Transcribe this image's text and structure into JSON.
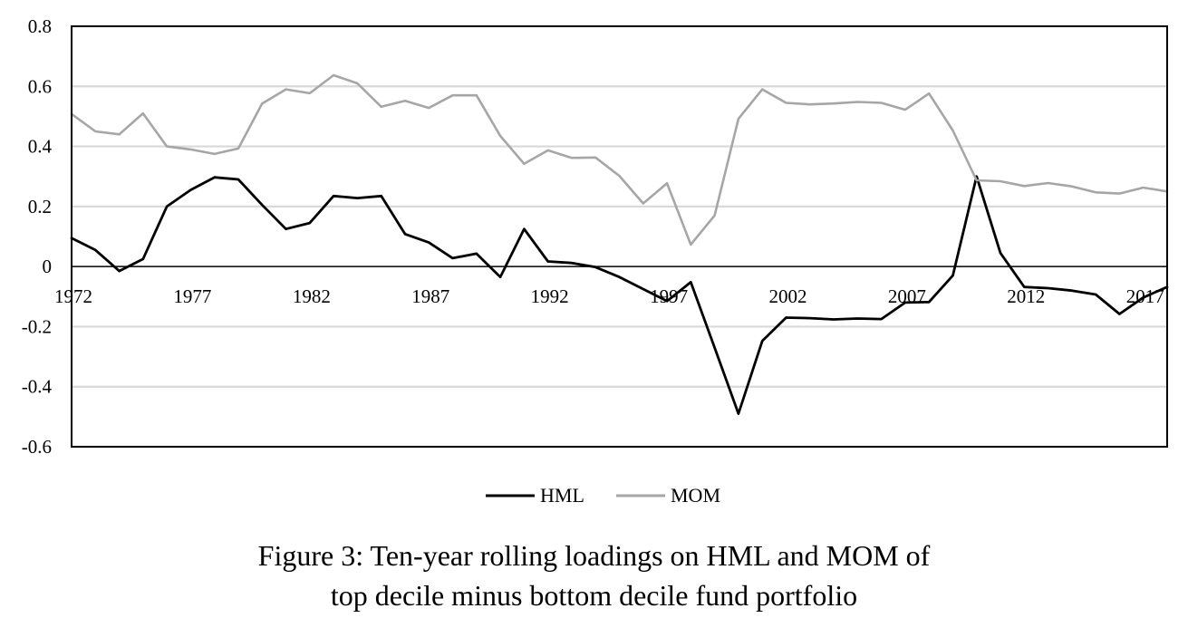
{
  "chart_data": {
    "type": "line",
    "x": [
      1972,
      1973,
      1974,
      1975,
      1976,
      1977,
      1978,
      1979,
      1980,
      1981,
      1982,
      1983,
      1984,
      1985,
      1986,
      1987,
      1988,
      1989,
      1990,
      1991,
      1992,
      1993,
      1994,
      1995,
      1996,
      1997,
      1998,
      1999,
      2000,
      2001,
      2002,
      2003,
      2004,
      2005,
      2006,
      2007,
      2008,
      2009,
      2010,
      2011,
      2012,
      2013,
      2014,
      2015,
      2016,
      2017,
      2018
    ],
    "x_tick_labels": [
      "1972",
      "1977",
      "1982",
      "1987",
      "1992",
      "1997",
      "2002",
      "2007",
      "2012",
      "2017"
    ],
    "y_tick_labels": [
      "0.8",
      "0.6",
      "0.4",
      "0.2",
      "0",
      "-0.2",
      "-0.4",
      "-0.6"
    ],
    "ylim": [
      -0.6,
      0.8
    ],
    "xlim": [
      1972,
      2018
    ],
    "grid": "horizontal",
    "legend_position": "bottom",
    "series": [
      {
        "name": "HML",
        "color": "#000000",
        "values": [
          0.095,
          0.055,
          -0.015,
          0.025,
          0.2,
          0.255,
          0.297,
          0.29,
          0.205,
          0.125,
          0.145,
          0.235,
          0.228,
          0.235,
          0.108,
          0.08,
          0.028,
          0.043,
          -0.035,
          0.125,
          0.017,
          0.012,
          -0.002,
          -0.035,
          -0.075,
          -0.115,
          -0.052,
          -0.27,
          -0.49,
          -0.248,
          -0.17,
          -0.172,
          -0.176,
          -0.173,
          -0.175,
          -0.12,
          -0.118,
          -0.03,
          0.3,
          0.045,
          -0.068,
          -0.072,
          -0.08,
          -0.093,
          -0.158,
          -0.103,
          -0.068
        ]
      },
      {
        "name": "MOM",
        "color": "#a6a6a6",
        "values": [
          0.508,
          0.45,
          0.44,
          0.51,
          0.4,
          0.39,
          0.375,
          0.393,
          0.543,
          0.59,
          0.577,
          0.637,
          0.61,
          0.532,
          0.552,
          0.528,
          0.57,
          0.57,
          0.435,
          0.342,
          0.387,
          0.362,
          0.363,
          0.302,
          0.21,
          0.277,
          0.073,
          0.17,
          0.492,
          0.59,
          0.545,
          0.54,
          0.543,
          0.548,
          0.545,
          0.522,
          0.576,
          0.453,
          0.287,
          0.284,
          0.268,
          0.278,
          0.267,
          0.247,
          0.243,
          0.263,
          0.25
        ]
      }
    ]
  },
  "caption": {
    "line1": "Figure 3: Ten-year rolling loadings on HML and MOM of",
    "line2": "top decile minus bottom decile fund portfolio"
  }
}
